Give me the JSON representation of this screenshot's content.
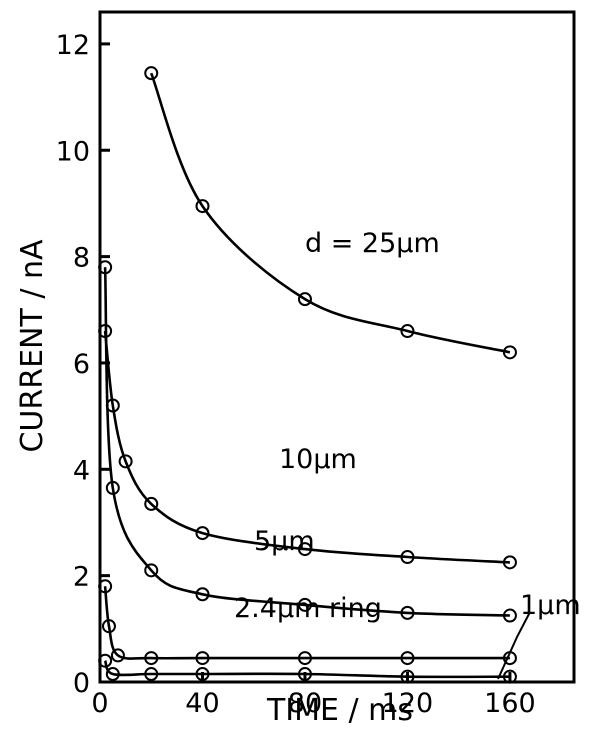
{
  "chart_data": {
    "type": "line",
    "xlabel": "TIME / ms",
    "ylabel": "CURRENT / nA",
    "xlim": [
      0,
      185
    ],
    "ylim": [
      0,
      12.6
    ],
    "xticks": [
      0,
      40,
      80,
      120,
      160
    ],
    "xtick_labels": [
      "0",
      "40",
      "80",
      "120",
      "160"
    ],
    "yticks": [
      0,
      2,
      4,
      6,
      8,
      10,
      12
    ],
    "ytick_labels": [
      "0",
      "2",
      "4",
      "6",
      "8",
      "10",
      "12"
    ],
    "grid": false,
    "legend": "none",
    "series": [
      {
        "name": "d = 25μm",
        "points": [
          [
            20,
            11.45
          ],
          [
            40,
            8.95
          ],
          [
            80,
            7.2
          ],
          [
            120,
            6.6
          ],
          [
            160,
            6.2
          ]
        ]
      },
      {
        "name": "10μm",
        "points": [
          [
            2,
            6.6
          ],
          [
            5,
            5.2
          ],
          [
            10,
            4.15
          ],
          [
            20,
            3.35
          ],
          [
            40,
            2.8
          ],
          [
            80,
            2.5
          ],
          [
            120,
            2.35
          ],
          [
            160,
            2.25
          ]
        ]
      },
      {
        "name": "5μm",
        "points": [
          [
            2,
            7.8
          ],
          [
            5,
            3.65
          ],
          [
            20,
            2.1
          ],
          [
            40,
            1.65
          ],
          [
            80,
            1.45
          ],
          [
            120,
            1.3
          ],
          [
            160,
            1.25
          ]
        ]
      },
      {
        "name": "2.4μm ring",
        "points": [
          [
            2,
            1.8
          ],
          [
            3.5,
            1.05
          ],
          [
            7,
            0.5
          ],
          [
            20,
            0.45
          ],
          [
            40,
            0.45
          ],
          [
            80,
            0.45
          ],
          [
            120,
            0.45
          ],
          [
            160,
            0.45
          ]
        ]
      },
      {
        "name": "1μm",
        "points": [
          [
            2,
            0.4
          ],
          [
            5,
            0.15
          ],
          [
            20,
            0.15
          ],
          [
            40,
            0.15
          ],
          [
            80,
            0.15
          ],
          [
            120,
            0.1
          ],
          [
            160,
            0.1
          ]
        ]
      }
    ]
  }
}
